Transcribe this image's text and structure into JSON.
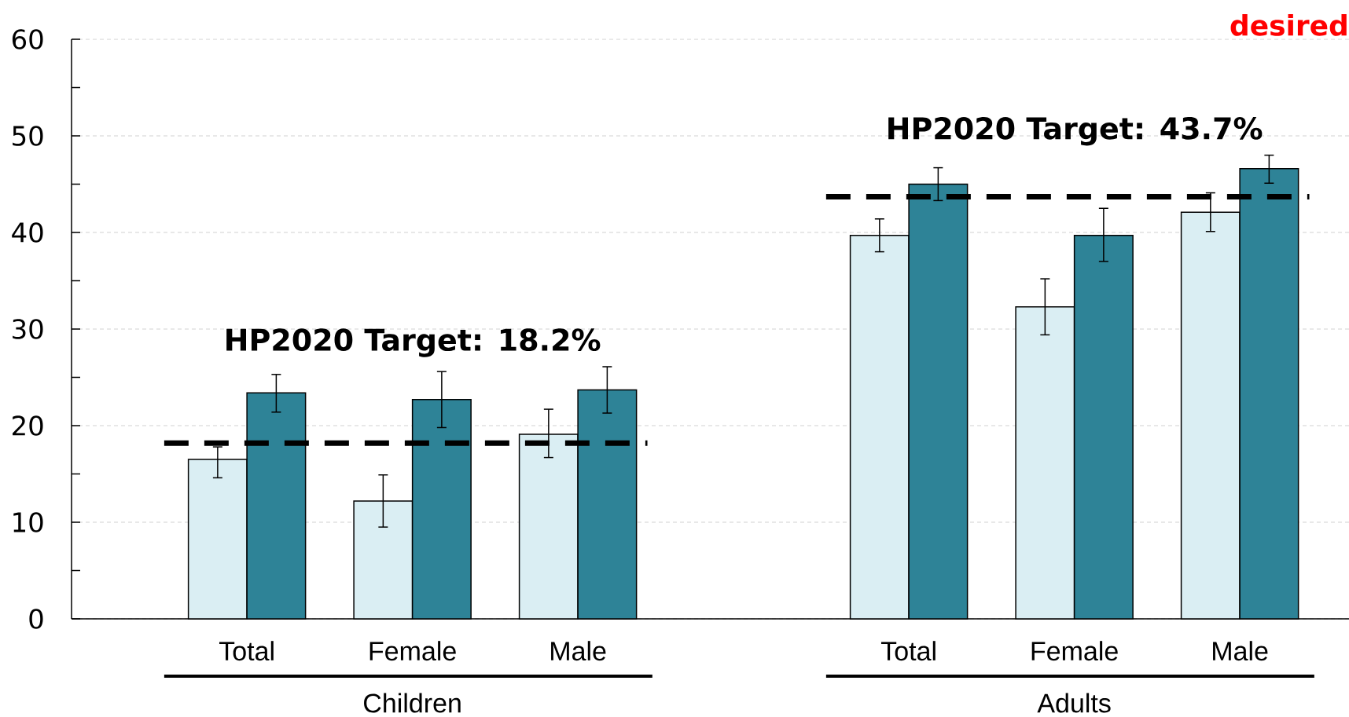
{
  "chart_data": {
    "type": "bar",
    "categories": [
      "Total",
      "Female",
      "Male",
      null,
      "Total",
      "Female",
      "Male"
    ],
    "series": [
      {
        "color": "#daeef3",
        "values": [
          16.5,
          12.2,
          19.1,
          null,
          39.7,
          32.3,
          42.1
        ],
        "errors": [
          [
            14.6,
            17.8
          ],
          [
            9.5,
            14.9
          ],
          [
            16.7,
            21.7
          ],
          null,
          [
            38.0,
            41.4
          ],
          [
            29.4,
            35.2
          ],
          [
            40.1,
            44.1
          ]
        ]
      },
      {
        "color": "#2e8397",
        "values": [
          23.4,
          22.7,
          23.7,
          null,
          45.0,
          39.7,
          46.6
        ],
        "errors": [
          [
            21.4,
            25.3
          ],
          [
            19.8,
            25.6
          ],
          [
            21.3,
            26.1
          ],
          null,
          [
            43.3,
            46.7
          ],
          [
            37.0,
            42.5
          ],
          [
            45.1,
            48.0
          ]
        ]
      }
    ],
    "ylim": [
      0,
      60
    ],
    "yticks": [
      0,
      {
        "value": 5,
        "label": null
      },
      10,
      {
        "value": 15,
        "label": null
      },
      20,
      {
        "value": 25,
        "label": null
      },
      30,
      {
        "value": 35,
        "label": null
      },
      40,
      {
        "value": 45,
        "label": null
      },
      50,
      {
        "value": 55,
        "label": null
      },
      60
    ],
    "grid": "y",
    "ref_lines": [
      {
        "axis": "y",
        "value": 18.2,
        "label": "HP2020 Target: 18.2%",
        "line_style": "dashed",
        "color": "#000000"
      },
      {
        "axis": "y",
        "value": 43.7,
        "label": "HP2020 Target: 43.7%",
        "line_style": "dashed",
        "color": "#000000"
      }
    ],
    "annotations": [
      "Children",
      "Adults",
      "desired"
    ]
  }
}
